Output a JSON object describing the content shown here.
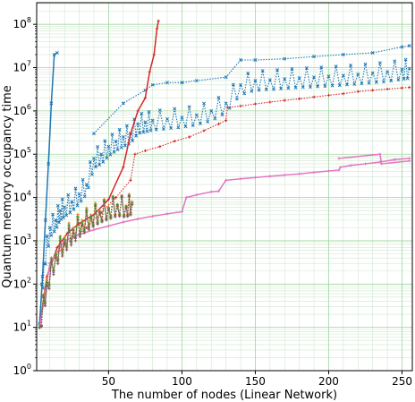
{
  "chart_data": {
    "type": "line",
    "title": "",
    "xlabel": "The number of nodes (Linear Network)",
    "ylabel": "Quantum memory occupancy time",
    "xlim": [
      1,
      257
    ],
    "ylim_log10": [
      0,
      8.5
    ],
    "yscale": "log",
    "grid": true,
    "legend": "none",
    "x_ticks": [
      {
        "value": 50,
        "label": "50"
      },
      {
        "value": 100,
        "label": "100"
      },
      {
        "value": 150,
        "label": "150"
      },
      {
        "value": 200,
        "label": "200"
      },
      {
        "value": 250,
        "label": "250"
      }
    ],
    "y_ticks": [
      {
        "exp": 0,
        "base": "10",
        "sup": "0"
      },
      {
        "exp": 1,
        "base": "10",
        "sup": "1"
      },
      {
        "exp": 2,
        "base": "10",
        "sup": "2"
      },
      {
        "exp": 3,
        "base": "10",
        "sup": "3"
      },
      {
        "exp": 4,
        "base": "10",
        "sup": "4"
      },
      {
        "exp": 5,
        "base": "10",
        "sup": "5"
      },
      {
        "exp": 6,
        "base": "10",
        "sup": "6"
      },
      {
        "exp": 7,
        "base": "10",
        "sup": "7"
      },
      {
        "exp": 8,
        "base": "10",
        "sup": "8"
      }
    ],
    "series": [
      {
        "color": "#1f77b4",
        "marker": "x",
        "dotted": false,
        "x": [
          3,
          5,
          7,
          9,
          11,
          13,
          15
        ],
        "y": [
          12,
          150,
          3000,
          60000,
          1500000,
          20000000,
          22000000
        ]
      },
      {
        "color": "#1f77b4",
        "marker": "x",
        "dotted": true,
        "zigzag": true,
        "x": [
          3,
          6,
          10,
          14,
          17,
          20,
          25,
          30,
          35,
          40,
          45,
          50,
          55,
          60,
          65,
          70,
          75,
          80,
          90,
          100,
          110,
          120,
          130,
          140,
          150,
          160,
          170,
          180,
          190,
          200,
          210,
          220,
          230,
          240,
          250,
          255
        ],
        "y": [
          12,
          300,
          2000,
          3000,
          5000,
          6000,
          8000,
          12000,
          20000,
          80000,
          100000,
          150000,
          200000,
          250000,
          300000,
          500000,
          550000,
          600000,
          650000,
          700000,
          800000,
          1000000,
          1500000,
          4000000,
          5000000,
          5200000,
          5500000,
          5800000,
          6000000,
          6300000,
          6600000,
          7000000,
          7500000,
          8000000,
          9000000,
          9500000
        ]
      },
      {
        "color": "#1f77b4",
        "marker": "x",
        "dotted": true,
        "x": [
          40,
          60,
          75,
          80,
          90,
          100,
          110,
          130,
          140,
          150,
          170,
          190,
          210,
          230,
          250,
          255
        ],
        "y": [
          300000,
          1500000,
          3000000,
          4000000,
          4500000,
          4500000,
          5000000,
          6000000,
          15000000,
          15000000,
          16000000,
          18000000,
          20000000,
          22000000,
          30000000,
          32000000
        ]
      },
      {
        "color": "#d62728",
        "marker": "+",
        "dotted": false,
        "x": [
          3,
          8,
          15,
          22,
          30,
          40,
          50,
          60,
          65,
          70,
          75,
          78,
          81,
          83,
          84
        ],
        "y": [
          10,
          150,
          700,
          1500,
          2500,
          4000,
          9000,
          50000,
          300000,
          1000000,
          2000000,
          8000000,
          20000000,
          80000000,
          120000000
        ]
      },
      {
        "color": "#d62728",
        "marker": "+",
        "dotted": true,
        "x": [
          3,
          10,
          20,
          35,
          45,
          55,
          65,
          68,
          75,
          85,
          95,
          105,
          115,
          125,
          130,
          131,
          140,
          150,
          160,
          170,
          180,
          190,
          200,
          210,
          220,
          230,
          240,
          250,
          255
        ],
        "y": [
          10,
          300,
          800,
          2000,
          4500,
          10000,
          25000,
          100000,
          120000,
          150000,
          200000,
          250000,
          350000,
          500000,
          600000,
          1200000,
          1300000,
          1450000,
          1600000,
          1750000,
          1900000,
          2100000,
          2300000,
          2500000,
          2800000,
          3000000,
          3200000,
          3400000,
          3500000
        ]
      },
      {
        "color": "#e377c2",
        "marker": "+",
        "dotted": false,
        "x": [
          3,
          10,
          20,
          30,
          40,
          50,
          60,
          70,
          80,
          90,
          100,
          103,
          110,
          120,
          125,
          130,
          140,
          150,
          160,
          170,
          180,
          190,
          200,
          207,
          208,
          215,
          225,
          235,
          245,
          255
        ],
        "y": [
          10,
          300,
          1000,
          1400,
          1800,
          2200,
          2700,
          3200,
          3700,
          4200,
          4700,
          10000,
          11500,
          13500,
          14000,
          25000,
          27000,
          29000,
          31000,
          33000,
          35000,
          38000,
          41000,
          43000,
          50000,
          55000,
          60000,
          66000,
          75000,
          80000
        ]
      },
      {
        "color": "#e377c2",
        "marker": "+",
        "dotted": false,
        "x": [
          207,
          235,
          236,
          255
        ],
        "y": [
          80000,
          100000,
          60000,
          70000
        ]
      },
      {
        "color": "#ff7f0e",
        "marker": "+",
        "dotted": true,
        "zigzag": true,
        "x": [
          3,
          8,
          14,
          20,
          26,
          32,
          38,
          44,
          50,
          56,
          62,
          66
        ],
        "y": [
          10,
          120,
          500,
          1200,
          2000,
          3000,
          4000,
          5000,
          6000,
          7000,
          6500,
          8000
        ]
      },
      {
        "color": "#9467bd",
        "marker": "+",
        "dotted": true,
        "zigzag": true,
        "x": [
          3,
          8,
          14,
          20,
          26,
          32,
          38,
          44,
          50,
          56,
          62,
          66
        ],
        "y": [
          10,
          100,
          450,
          1000,
          1700,
          2500,
          3500,
          4500,
          5500,
          6500,
          6000,
          7000
        ]
      },
      {
        "color": "#2ca02c",
        "marker": "+",
        "dotted": true,
        "zigzag": true,
        "x": [
          3,
          8,
          14,
          20,
          26,
          32,
          38,
          44,
          50,
          56,
          62,
          66
        ],
        "y": [
          10,
          110,
          480,
          1100,
          1800,
          2700,
          3700,
          4700,
          5700,
          6800,
          6200,
          7500
        ]
      },
      {
        "color": "#8c564b",
        "marker": "+",
        "dotted": true,
        "zigzag": true,
        "x": [
          3,
          8,
          14,
          20,
          26,
          32,
          38,
          44,
          50,
          56,
          62,
          66
        ],
        "y": [
          10,
          90,
          400,
          900,
          1500,
          2300,
          3300,
          4300,
          5200,
          6200,
          5800,
          6800
        ]
      }
    ]
  }
}
